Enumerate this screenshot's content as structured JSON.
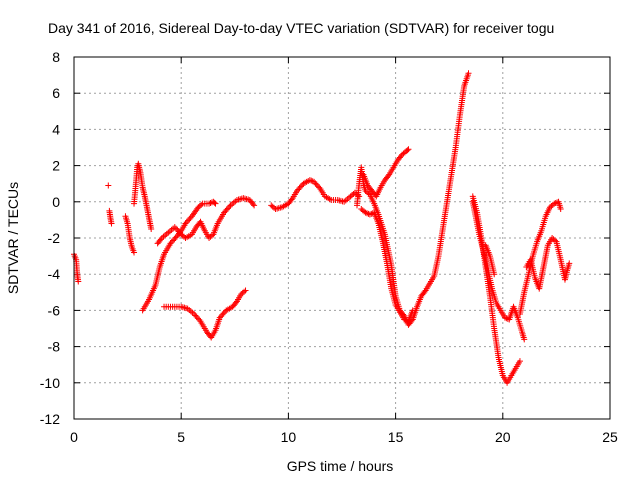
{
  "chart_data": {
    "type": "scatter",
    "title": "Day 341 of 2016, Sidereal Day-to-day VTEC variation (SDTVAR) for receiver togu",
    "xlabel": "GPS time / hours",
    "ylabel": "SDTVAR / TECUs",
    "xlim": [
      0,
      25
    ],
    "ylim": [
      -12,
      8
    ],
    "xticks": [
      "0",
      "5",
      "10",
      "15",
      "20",
      "25"
    ],
    "yticks": [
      "-12",
      "-10",
      "-8",
      "-6",
      "-4",
      "-2",
      "0",
      "2",
      "4",
      "6",
      "8"
    ],
    "grid": true,
    "marker": "+",
    "series": [
      {
        "color": "#ff0000",
        "segments": [
          [
            [
              0.0,
              -2.9
            ],
            [
              0.1,
              -3.2
            ],
            [
              0.15,
              -4.0
            ],
            [
              0.2,
              -4.4
            ]
          ],
          [
            [
              1.6,
              0.9
            ]
          ],
          [
            [
              1.65,
              -0.5
            ],
            [
              1.7,
              -0.9
            ],
            [
              1.75,
              -1.2
            ]
          ],
          [
            [
              2.4,
              -0.8
            ],
            [
              2.5,
              -1.2
            ],
            [
              2.6,
              -2.0
            ],
            [
              2.7,
              -2.5
            ],
            [
              2.8,
              -2.8
            ]
          ],
          [
            [
              2.8,
              -0.1
            ],
            [
              2.85,
              0.5
            ],
            [
              2.9,
              1.2
            ],
            [
              2.95,
              1.9
            ],
            [
              3.0,
              2.1
            ],
            [
              3.1,
              1.6
            ],
            [
              3.2,
              0.8
            ],
            [
              3.3,
              0.3
            ],
            [
              3.4,
              -0.3
            ],
            [
              3.5,
              -0.9
            ],
            [
              3.6,
              -1.5
            ]
          ],
          [
            [
              3.2,
              -6.0
            ],
            [
              3.5,
              -5.4
            ],
            [
              3.8,
              -4.6
            ],
            [
              4.0,
              -3.6
            ],
            [
              4.2,
              -2.9
            ],
            [
              4.5,
              -2.3
            ],
            [
              4.8,
              -1.9
            ],
            [
              5.0,
              -1.6
            ],
            [
              5.2,
              -1.2
            ],
            [
              5.5,
              -0.8
            ],
            [
              5.8,
              -0.3
            ],
            [
              6.0,
              -0.1
            ],
            [
              6.3,
              -0.1
            ],
            [
              6.5,
              0.0
            ],
            [
              6.6,
              -0.1
            ]
          ],
          [
            [
              3.9,
              -2.3
            ],
            [
              4.1,
              -2.0
            ],
            [
              4.4,
              -1.7
            ],
            [
              4.7,
              -1.4
            ],
            [
              5.0,
              -1.8
            ],
            [
              5.2,
              -2.0
            ],
            [
              5.5,
              -1.8
            ],
            [
              5.7,
              -1.4
            ],
            [
              5.9,
              -1.1
            ],
            [
              6.1,
              -1.6
            ],
            [
              6.3,
              -2.0
            ],
            [
              6.5,
              -1.8
            ],
            [
              6.7,
              -1.2
            ],
            [
              7.0,
              -0.6
            ],
            [
              7.3,
              -0.2
            ],
            [
              7.6,
              0.1
            ],
            [
              7.9,
              0.2
            ],
            [
              8.2,
              0.1
            ],
            [
              8.4,
              -0.2
            ]
          ],
          [
            [
              4.2,
              -5.8
            ],
            [
              4.6,
              -5.8
            ],
            [
              5.0,
              -5.8
            ],
            [
              5.3,
              -5.9
            ],
            [
              5.6,
              -6.2
            ],
            [
              5.9,
              -6.6
            ],
            [
              6.2,
              -7.2
            ],
            [
              6.4,
              -7.5
            ],
            [
              6.6,
              -7.1
            ],
            [
              6.8,
              -6.4
            ],
            [
              7.1,
              -6.0
            ],
            [
              7.4,
              -5.8
            ],
            [
              7.6,
              -5.5
            ],
            [
              7.8,
              -5.1
            ],
            [
              8.0,
              -4.9
            ]
          ],
          [
            [
              9.2,
              -0.2
            ],
            [
              9.4,
              -0.4
            ],
            [
              9.7,
              -0.3
            ],
            [
              10.0,
              -0.1
            ],
            [
              10.2,
              0.2
            ],
            [
              10.4,
              0.6
            ],
            [
              10.7,
              1.0
            ],
            [
              11.0,
              1.2
            ],
            [
              11.2,
              1.1
            ],
            [
              11.5,
              0.7
            ],
            [
              11.7,
              0.3
            ],
            [
              12.0,
              0.1
            ],
            [
              12.3,
              0.1
            ],
            [
              12.6,
              0.0
            ],
            [
              12.9,
              0.3
            ],
            [
              13.1,
              0.5
            ],
            [
              13.3,
              0.3
            ]
          ],
          [
            [
              13.2,
              -0.2
            ],
            [
              13.3,
              1.0
            ],
            [
              13.4,
              1.9
            ],
            [
              13.5,
              1.0
            ],
            [
              13.6,
              0.6
            ],
            [
              13.8,
              0.4
            ],
            [
              14.0,
              -0.1
            ],
            [
              14.2,
              -0.7
            ],
            [
              14.5,
              -1.8
            ],
            [
              14.8,
              -3.5
            ],
            [
              15.0,
              -5.2
            ],
            [
              15.2,
              -6.0
            ],
            [
              15.4,
              -6.3
            ],
            [
              15.6,
              -6.8
            ],
            [
              15.8,
              -6.5
            ],
            [
              16.0,
              -5.8
            ],
            [
              16.2,
              -5.2
            ],
            [
              16.4,
              -4.9
            ],
            [
              16.6,
              -4.5
            ],
            [
              16.8,
              -4.1
            ],
            [
              17.0,
              -3.0
            ],
            [
              17.2,
              -1.5
            ],
            [
              17.4,
              0.0
            ],
            [
              17.6,
              1.5
            ],
            [
              17.8,
              3.0
            ],
            [
              18.0,
              4.8
            ],
            [
              18.2,
              6.4
            ],
            [
              18.4,
              7.1
            ]
          ],
          [
            [
              13.4,
              -0.4
            ],
            [
              13.6,
              -0.6
            ],
            [
              13.8,
              -0.7
            ],
            [
              14.0,
              -0.6
            ],
            [
              14.2,
              -1.2
            ],
            [
              14.4,
              -2.2
            ],
            [
              14.6,
              -3.4
            ],
            [
              14.8,
              -4.8
            ],
            [
              15.0,
              -5.7
            ],
            [
              15.2,
              -6.1
            ],
            [
              15.4,
              -6.5
            ],
            [
              15.6,
              -6.6
            ],
            [
              15.8,
              -6.0
            ]
          ],
          [
            [
              13.5,
              1.5
            ],
            [
              13.7,
              0.9
            ],
            [
              13.9,
              0.6
            ],
            [
              14.1,
              0.3
            ],
            [
              14.3,
              0.8
            ],
            [
              14.5,
              1.2
            ],
            [
              14.7,
              1.5
            ],
            [
              14.9,
              1.9
            ],
            [
              15.1,
              2.3
            ],
            [
              15.3,
              2.6
            ],
            [
              15.5,
              2.8
            ],
            [
              15.6,
              2.9
            ]
          ],
          [
            [
              18.6,
              0.3
            ],
            [
              18.8,
              -0.6
            ],
            [
              19.0,
              -2.0
            ],
            [
              19.2,
              -3.6
            ],
            [
              19.4,
              -5.2
            ],
            [
              19.6,
              -7.0
            ],
            [
              19.8,
              -8.6
            ],
            [
              20.0,
              -9.6
            ],
            [
              20.2,
              -10.0
            ],
            [
              20.4,
              -9.6
            ],
            [
              20.6,
              -9.2
            ],
            [
              20.8,
              -8.8
            ]
          ],
          [
            [
              18.6,
              0.0
            ],
            [
              18.9,
              -1.8
            ],
            [
              19.2,
              -3.2
            ],
            [
              19.5,
              -4.8
            ],
            [
              19.7,
              -5.6
            ],
            [
              19.9,
              -6.0
            ],
            [
              20.1,
              -6.4
            ],
            [
              20.3,
              -6.5
            ],
            [
              20.5,
              -5.8
            ],
            [
              20.7,
              -6.4
            ],
            [
              20.9,
              -7.2
            ],
            [
              21.0,
              -7.6
            ]
          ],
          [
            [
              20.8,
              -6.2
            ],
            [
              21.0,
              -5.0
            ],
            [
              21.2,
              -4.0
            ],
            [
              21.4,
              -3.0
            ],
            [
              21.6,
              -2.2
            ],
            [
              21.8,
              -1.6
            ],
            [
              22.0,
              -0.8
            ],
            [
              22.2,
              -0.3
            ],
            [
              22.4,
              -0.1
            ],
            [
              22.6,
              0.0
            ],
            [
              22.7,
              -0.4
            ]
          ],
          [
            [
              21.1,
              -3.6
            ],
            [
              21.3,
              -3.2
            ],
            [
              21.5,
              -4.2
            ],
            [
              21.7,
              -4.8
            ],
            [
              21.9,
              -3.6
            ],
            [
              22.1,
              -2.4
            ],
            [
              22.3,
              -2.0
            ],
            [
              22.5,
              -2.2
            ],
            [
              22.7,
              -3.2
            ],
            [
              22.9,
              -4.3
            ],
            [
              23.0,
              -3.8
            ],
            [
              23.1,
              -3.4
            ]
          ],
          [
            [
              19.2,
              -2.4
            ],
            [
              19.4,
              -3.0
            ],
            [
              19.6,
              -4.0
            ]
          ]
        ]
      }
    ]
  }
}
